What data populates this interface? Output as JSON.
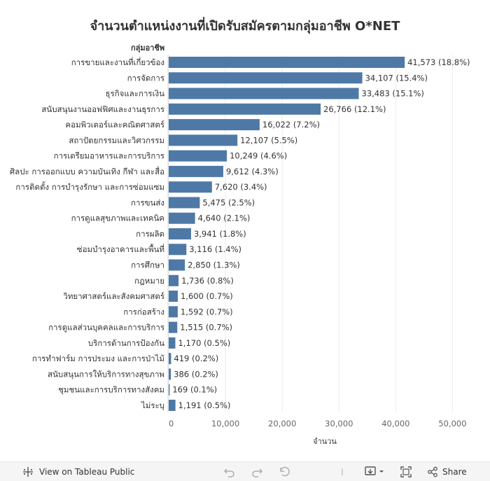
{
  "chart_data": {
    "type": "bar",
    "orientation": "horizontal",
    "title": "จำนวนตำแหน่งงานที่เปิดรับสมัครตามกลุ่มอาชีพ O*NET",
    "row_header": "กลุ่มอาชีพ",
    "xlabel": "จำนวน",
    "xlim": [
      0,
      55000
    ],
    "xticks": [
      0,
      10000,
      20000,
      30000,
      40000,
      50000
    ],
    "xtick_labels": [
      "0",
      "10,000",
      "20,000",
      "30,000",
      "40,000",
      "50,000"
    ],
    "grid": true,
    "bar_color": "#4e79a7",
    "categories": [
      "การขายและงานที่เกี่ยวข้อง",
      "การจัดการ",
      "ธุรกิจและการเงิน",
      "สนับสนุนงานออฟฟิศและงานธุรการ",
      "คอมพิวเตอร์และคณิตศาสตร์",
      "สถาปัตยกรรมและวิศวกรรม",
      "การเตรียมอาหารและการบริการ",
      "ศิลปะ การออกแบบ ความบันเทิง กีฬา และสื่อ",
      "การติดตั้ง การบำรุงรักษา และการซ่อมแซม",
      "การขนส่ง",
      "การดูแลสุขภาพและเทคนิค",
      "การผลิต",
      "ซ่อมบำรุงอาคารและพื้นที่",
      "การศึกษา",
      "กฎหมาย",
      "วิทยาศาสตร์และสังคมศาสตร์",
      "การก่อสร้าง",
      "การดูแลส่วนบุคคลและการบริการ",
      "บริการด้านการป้องกัน",
      "การทำฟาร์ม การประมง และการป่าไม้",
      "สนับสนุนการให้บริการทางสุขภาพ",
      "ชุมชนและการบริการทางสังคม",
      "ไม่ระบุ"
    ],
    "values": [
      41573,
      34107,
      33483,
      26766,
      16022,
      12107,
      10249,
      9612,
      7620,
      5475,
      4640,
      3941,
      3116,
      2850,
      1736,
      1600,
      1592,
      1515,
      1170,
      419,
      386,
      169,
      1191
    ],
    "data_labels": [
      "41,573 (18.8%)",
      "34,107 (15.4%)",
      "33,483 (15.1%)",
      "26,766 (12.1%)",
      "16,022 (7.2%)",
      "12,107 (5.5%)",
      "10,249 (4.6%)",
      "9,612 (4.3%)",
      "7,620 (3.4%)",
      "5,475 (2.5%)",
      "4,640 (2.1%)",
      "3,941 (1.8%)",
      "3,116 (1.4%)",
      "2,850 (1.3%)",
      "1,736 (0.8%)",
      "1,600 (0.7%)",
      "1,592 (0.7%)",
      "1,515 (0.7%)",
      "1,170 (0.5%)",
      "419 (0.2%)",
      "386 (0.2%)",
      "169 (0.1%)",
      "1,191 (0.5%)"
    ]
  },
  "toolbar": {
    "view_label": "View on Tableau Public",
    "share_label": "Share",
    "icons": [
      "tableau-logo-icon",
      "undo-icon",
      "redo-icon",
      "revert-icon",
      "download-icon",
      "fullscreen-icon",
      "share-icon"
    ]
  }
}
